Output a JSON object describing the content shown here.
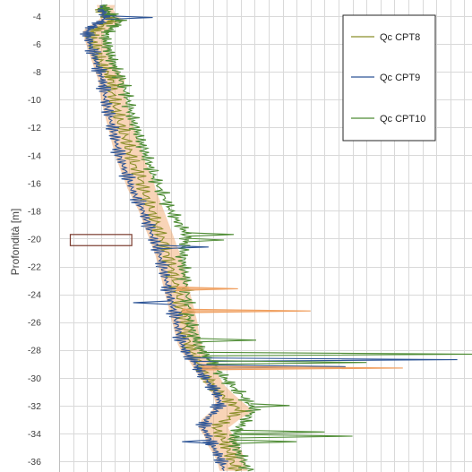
{
  "chart_data": {
    "type": "line",
    "orientation": "depth-profile",
    "ylabel": "Profondità [m]",
    "ylim": [
      -36.7,
      -3.2
    ],
    "y_ticks": [
      -4,
      -6,
      -8,
      -10,
      -12,
      -14,
      -16,
      -18,
      -20,
      -22,
      -24,
      -26,
      -28,
      -30,
      -32,
      -34,
      -36
    ],
    "y_tick_labels": [
      "-4",
      "-6",
      "-8",
      "-10",
      "-12",
      "-14",
      "-16",
      "-18",
      "-20",
      "-22",
      "-24",
      "-26",
      "-28",
      "-30",
      "-32",
      "-34",
      "-36"
    ],
    "x_tick_labels_visible": false,
    "xlim": [
      0,
      30
    ],
    "grid": true,
    "legend_position": "top-right",
    "series": [
      {
        "name": "Qc CPT8",
        "color": "#8b8f2a",
        "points": [
          [
            3.1,
            -3.2
          ],
          [
            3.0,
            -3.6
          ],
          [
            3.3,
            -4.0
          ],
          [
            3.8,
            -4.3
          ],
          [
            3.2,
            -4.6
          ],
          [
            2.6,
            -5.0
          ],
          [
            2.3,
            -5.3
          ],
          [
            2.4,
            -5.8
          ],
          [
            2.6,
            -6.4
          ],
          [
            2.8,
            -7.0
          ],
          [
            3.1,
            -7.6
          ],
          [
            3.5,
            -8.2
          ],
          [
            3.8,
            -8.6
          ],
          [
            3.7,
            -9.2
          ],
          [
            3.9,
            -10.0
          ],
          [
            4.1,
            -10.8
          ],
          [
            4.3,
            -11.6
          ],
          [
            4.6,
            -12.4
          ],
          [
            4.9,
            -13.2
          ],
          [
            5.1,
            -14.0
          ],
          [
            5.4,
            -14.8
          ],
          [
            5.8,
            -15.6
          ],
          [
            6.0,
            -16.4
          ],
          [
            6.3,
            -17.2
          ],
          [
            6.6,
            -18.0
          ],
          [
            6.9,
            -18.8
          ],
          [
            7.2,
            -19.6
          ],
          [
            7.5,
            -20.4
          ],
          [
            7.8,
            -21.2
          ],
          [
            8.0,
            -22.0
          ],
          [
            8.2,
            -22.8
          ],
          [
            8.4,
            -23.6
          ],
          [
            8.6,
            -24.4
          ],
          [
            8.8,
            -25.2
          ],
          [
            9.0,
            -26.0
          ],
          [
            9.1,
            -26.8
          ],
          [
            9.3,
            -27.6
          ],
          [
            9.5,
            -28.2
          ],
          [
            9.9,
            -28.8
          ],
          [
            10.3,
            -29.4
          ],
          [
            10.6,
            -30.0
          ],
          [
            11.0,
            -30.6
          ],
          [
            11.6,
            -31.2
          ],
          [
            12.3,
            -31.8
          ],
          [
            13.0,
            -32.4
          ],
          [
            12.0,
            -33.0
          ],
          [
            11.2,
            -33.6
          ],
          [
            11.6,
            -34.2
          ],
          [
            11.9,
            -34.8
          ],
          [
            12.2,
            -35.4
          ],
          [
            12.4,
            -36.0
          ],
          [
            12.6,
            -36.7
          ]
        ]
      },
      {
        "name": "Qc CPT9",
        "color": "#2e5597",
        "points": [
          [
            3.0,
            -3.2
          ],
          [
            3.1,
            -3.6
          ],
          [
            3.4,
            -4.0
          ],
          [
            3.0,
            -4.4
          ],
          [
            2.3,
            -4.8
          ],
          [
            2.0,
            -5.1
          ],
          [
            2.1,
            -5.6
          ],
          [
            2.3,
            -6.2
          ],
          [
            2.5,
            -6.8
          ],
          [
            2.7,
            -7.4
          ],
          [
            2.9,
            -8.0
          ],
          [
            3.1,
            -8.6
          ],
          [
            3.2,
            -9.2
          ],
          [
            3.3,
            -10.0
          ],
          [
            3.5,
            -10.8
          ],
          [
            3.7,
            -11.6
          ],
          [
            3.9,
            -12.4
          ],
          [
            4.1,
            -13.2
          ],
          [
            4.3,
            -14.0
          ],
          [
            4.6,
            -14.8
          ],
          [
            4.9,
            -15.6
          ],
          [
            5.2,
            -16.4
          ],
          [
            5.6,
            -17.2
          ],
          [
            6.0,
            -18.0
          ],
          [
            6.3,
            -18.8
          ],
          [
            6.6,
            -19.6
          ],
          [
            6.9,
            -20.4
          ],
          [
            7.2,
            -21.2
          ],
          [
            7.4,
            -22.0
          ],
          [
            7.6,
            -22.8
          ],
          [
            7.8,
            -23.6
          ],
          [
            8.0,
            -24.4
          ],
          [
            8.2,
            -25.2
          ],
          [
            8.4,
            -26.0
          ],
          [
            8.6,
            -26.8
          ],
          [
            8.8,
            -27.6
          ],
          [
            9.1,
            -28.2
          ],
          [
            9.6,
            -28.8
          ],
          [
            10.0,
            -29.4
          ],
          [
            10.4,
            -30.0
          ],
          [
            10.9,
            -30.6
          ],
          [
            11.3,
            -31.2
          ],
          [
            11.5,
            -31.8
          ],
          [
            11.2,
            -32.4
          ],
          [
            10.5,
            -33.0
          ],
          [
            10.3,
            -33.6
          ],
          [
            10.7,
            -34.2
          ],
          [
            10.9,
            -34.8
          ],
          [
            11.3,
            -35.4
          ],
          [
            11.6,
            -36.0
          ],
          [
            11.8,
            -36.7
          ]
        ]
      },
      {
        "name": "Qc CPT10",
        "color": "#4e8c34",
        "points": [
          [
            3.2,
            -3.2
          ],
          [
            3.4,
            -3.6
          ],
          [
            3.9,
            -4.0
          ],
          [
            4.4,
            -4.4
          ],
          [
            3.8,
            -4.8
          ],
          [
            3.4,
            -5.2
          ],
          [
            3.3,
            -5.7
          ],
          [
            3.5,
            -6.3
          ],
          [
            3.7,
            -6.9
          ],
          [
            3.9,
            -7.5
          ],
          [
            4.2,
            -8.1
          ],
          [
            4.5,
            -8.7
          ],
          [
            4.7,
            -9.3
          ],
          [
            4.9,
            -10.0
          ],
          [
            5.1,
            -10.8
          ],
          [
            5.3,
            -11.6
          ],
          [
            5.6,
            -12.4
          ],
          [
            5.9,
            -13.2
          ],
          [
            6.2,
            -14.0
          ],
          [
            6.5,
            -14.8
          ],
          [
            6.8,
            -15.6
          ],
          [
            7.2,
            -16.4
          ],
          [
            7.6,
            -17.2
          ],
          [
            8.0,
            -18.0
          ],
          [
            8.5,
            -18.8
          ],
          [
            9.1,
            -19.6
          ],
          [
            9.0,
            -20.4
          ],
          [
            8.8,
            -21.2
          ],
          [
            8.9,
            -22.0
          ],
          [
            9.0,
            -22.8
          ],
          [
            9.1,
            -23.6
          ],
          [
            9.2,
            -24.4
          ],
          [
            9.3,
            -25.2
          ],
          [
            9.4,
            -26.0
          ],
          [
            9.6,
            -26.8
          ],
          [
            9.9,
            -27.6
          ],
          [
            10.4,
            -28.3
          ],
          [
            11.0,
            -29.0
          ],
          [
            11.6,
            -29.8
          ],
          [
            12.2,
            -30.4
          ],
          [
            12.8,
            -31.0
          ],
          [
            13.4,
            -31.6
          ],
          [
            13.9,
            -32.3
          ],
          [
            13.4,
            -33.0
          ],
          [
            12.8,
            -33.7
          ],
          [
            12.4,
            -34.4
          ],
          [
            12.7,
            -35.1
          ],
          [
            13.1,
            -35.8
          ],
          [
            13.5,
            -36.7
          ]
        ]
      }
    ],
    "spikes": [
      {
        "series": "Qc CPT9",
        "depth": -4.1,
        "value": 6.7
      },
      {
        "series": "Qc CPT9",
        "depth": -20.6,
        "value": 10.7
      },
      {
        "series": "Qc CPT9",
        "depth": -24.6,
        "value": 5.3
      },
      {
        "series": "Qc CPT9",
        "depth": -28.7,
        "value": 28.5
      },
      {
        "series": "Qc CPT9",
        "depth": -29.2,
        "value": 20.5
      },
      {
        "series": "Qc CPT9",
        "depth": -34.6,
        "value": 8.8
      },
      {
        "series": "Qc CPT10",
        "depth": -19.7,
        "value": 12.5
      },
      {
        "series": "Qc CPT10",
        "depth": -20.1,
        "value": 11.8
      },
      {
        "series": "Qc CPT10",
        "depth": -27.3,
        "value": 14.1
      },
      {
        "series": "Qc CPT10",
        "depth": -28.3,
        "value": 45.0
      },
      {
        "series": "Qc CPT10",
        "depth": -28.9,
        "value": 22.0
      },
      {
        "series": "Qc CPT10",
        "depth": -32.0,
        "value": 16.5
      },
      {
        "series": "Qc CPT10",
        "depth": -33.9,
        "value": 19.0
      },
      {
        "series": "Qc CPT10",
        "depth": -34.2,
        "value": 21.0
      },
      {
        "series": "Qc CPT10",
        "depth": -34.6,
        "value": 17.0
      },
      {
        "series": "Qc CPT8",
        "depth": -23.6,
        "value": 12.8
      },
      {
        "series": "Qc CPT8",
        "depth": -25.2,
        "value": 18.0
      },
      {
        "series": "Qc CPT8",
        "depth": -29.3,
        "value": 24.6
      }
    ],
    "annotations": [
      {
        "type": "rectangle",
        "depth_top": -19.7,
        "depth_bottom": -20.5,
        "value_min": 0.8,
        "value_max": 5.2,
        "stroke": "#7a3b2e"
      }
    ]
  },
  "legend": {
    "entries": [
      {
        "label": "Qc CPT8",
        "color": "#8b8f2a"
      },
      {
        "label": "Qc CPT9",
        "color": "#2e5597"
      },
      {
        "label": "Qc CPT10",
        "color": "#4e8c34"
      }
    ]
  },
  "colors": {
    "gridline": "#d9d9d9",
    "axis": "#bfbfbf",
    "orange_band": "#f0a060"
  }
}
